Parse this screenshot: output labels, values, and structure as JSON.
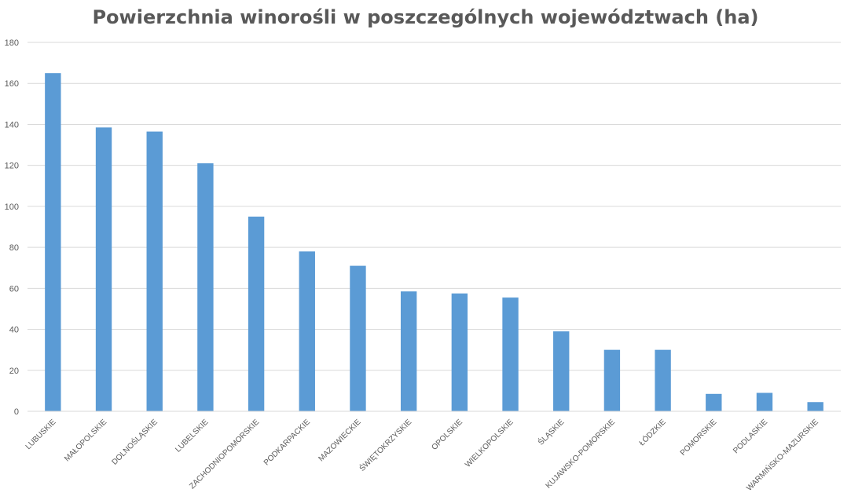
{
  "chart_data": {
    "type": "bar",
    "title": "Powierzchnia winorośli w poszczególnych województwach (ha)",
    "xlabel": "",
    "ylabel": "",
    "ylim": [
      0,
      180
    ],
    "yticks": [
      0,
      20,
      40,
      60,
      80,
      100,
      120,
      140,
      160,
      180
    ],
    "grid": true,
    "legend": "none",
    "bar_color": "#5B9BD5",
    "categories": [
      "LUBUSKIE",
      "MAŁOPOLSKIE",
      "DOLNOŚLĄSKIE",
      "LUBELSKIE",
      "ZACHODNIOPOMORSKIE",
      "PODKARPACKIE",
      "MAZOWIECKIE",
      "ŚWIĘTOKRZYSKIE",
      "OPOLSKIE",
      "WIELKOPOLSKIE",
      "ŚLĄSKIE",
      "KUJAWSKO-POMORSKIE",
      "ŁÓDZKIE",
      "POMORSKIE",
      "PODLASKIE",
      "WARMIŃSKO-MAZURSKIE"
    ],
    "values": [
      165,
      138.5,
      136.5,
      121,
      95,
      78,
      71,
      58.5,
      57.5,
      55.5,
      39,
      30,
      30,
      8.5,
      9,
      4.5
    ]
  }
}
